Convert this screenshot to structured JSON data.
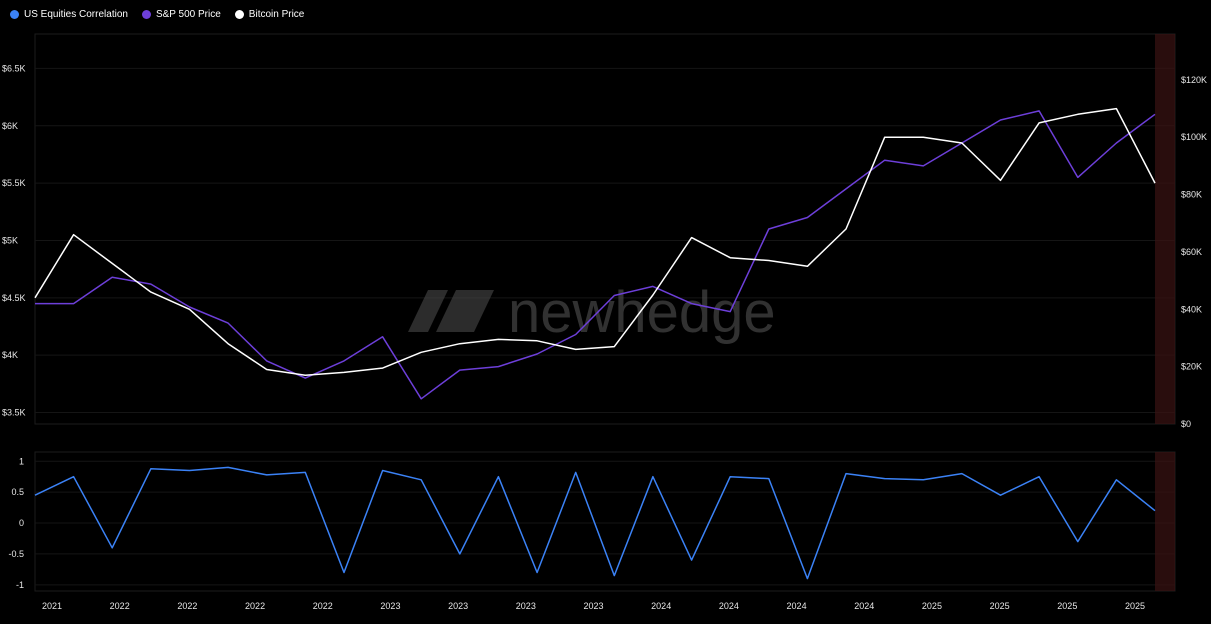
{
  "legend": {
    "items": [
      {
        "label": "US Equities Correlation",
        "color": "#3b82f6"
      },
      {
        "label": "S&P 500 Price",
        "color": "#6d3fd9"
      },
      {
        "label": "Bitcoin Price",
        "color": "#ffffff"
      }
    ]
  },
  "watermark": "newhedge",
  "chart_data": [
    {
      "type": "line",
      "panel": "price",
      "x": [
        "2021-01",
        "2021-03",
        "2021-05",
        "2021-07",
        "2021-09",
        "2021-11",
        "2022-01",
        "2022-03",
        "2022-05",
        "2022-07",
        "2022-09",
        "2022-11",
        "2023-01",
        "2023-03",
        "2023-05",
        "2023-07",
        "2023-09",
        "2023-11",
        "2024-01",
        "2024-03",
        "2024-05",
        "2024-07",
        "2024-09",
        "2024-11",
        "2025-01",
        "2025-03",
        "2025-05",
        "2025-07",
        "2025-09",
        "2025-11"
      ],
      "series": [
        {
          "name": "S&P 500 Price",
          "axis": "left",
          "color": "#6d3fd9",
          "values": [
            4450,
            4450,
            4680,
            4620,
            4420,
            4280,
            3950,
            3800,
            3950,
            4160,
            3620,
            3870,
            3900,
            4010,
            4180,
            4520,
            4600,
            4450,
            4380,
            5100,
            5200,
            5450,
            5700,
            5650,
            5850,
            6050,
            6130,
            5550,
            5850,
            6100
          ]
        },
        {
          "name": "Bitcoin Price",
          "axis": "right",
          "color": "#ffffff",
          "values": [
            44000,
            66000,
            56000,
            46000,
            40000,
            28000,
            19000,
            17000,
            18000,
            19500,
            25000,
            28000,
            29500,
            29000,
            26000,
            27000,
            45000,
            65000,
            58000,
            57000,
            55000,
            68000,
            100000,
            100000,
            98000,
            85000,
            105000,
            108000,
            110000,
            84000
          ]
        }
      ],
      "y_left": {
        "ticks": [
          "$3.5K",
          "$4K",
          "$4.5K",
          "$5K",
          "$5.5K",
          "$6K",
          "$6.5K"
        ],
        "ylim": [
          3400,
          6800
        ]
      },
      "y_right": {
        "ticks": [
          "$0",
          "$20K",
          "$40K",
          "$60K",
          "$80K",
          "$100K",
          "$120K"
        ],
        "ylim": [
          0,
          136000
        ]
      }
    },
    {
      "type": "line",
      "panel": "correlation",
      "x": [
        "2021-01",
        "2021-03",
        "2021-05",
        "2021-07",
        "2021-09",
        "2021-11",
        "2022-01",
        "2022-03",
        "2022-05",
        "2022-07",
        "2022-09",
        "2022-11",
        "2023-01",
        "2023-03",
        "2023-05",
        "2023-07",
        "2023-09",
        "2023-11",
        "2024-01",
        "2024-03",
        "2024-05",
        "2024-07",
        "2024-09",
        "2024-11",
        "2025-01",
        "2025-03",
        "2025-05",
        "2025-07",
        "2025-09",
        "2025-11"
      ],
      "series": [
        {
          "name": "US Equities Correlation",
          "color": "#3b82f6",
          "values": [
            0.45,
            0.75,
            -0.4,
            0.88,
            0.85,
            0.9,
            0.78,
            0.82,
            -0.8,
            0.85,
            0.7,
            -0.5,
            0.75,
            -0.8,
            0.82,
            -0.85,
            0.75,
            -0.6,
            0.75,
            0.72,
            -0.9,
            0.8,
            0.72,
            0.7,
            0.8,
            0.45,
            0.75,
            -0.3,
            0.7,
            0.2
          ]
        }
      ],
      "y": {
        "ticks": [
          "-1",
          "-0.5",
          "0",
          "0.5",
          "1"
        ],
        "ylim": [
          -1.1,
          1.15
        ]
      }
    }
  ],
  "x_axis": {
    "tick_labels": [
      "2021",
      "2022",
      "2022",
      "2022",
      "2022",
      "2023",
      "2023",
      "2023",
      "2023",
      "2024",
      "2024",
      "2024",
      "2024",
      "2025",
      "2025",
      "2025",
      "2025"
    ]
  }
}
